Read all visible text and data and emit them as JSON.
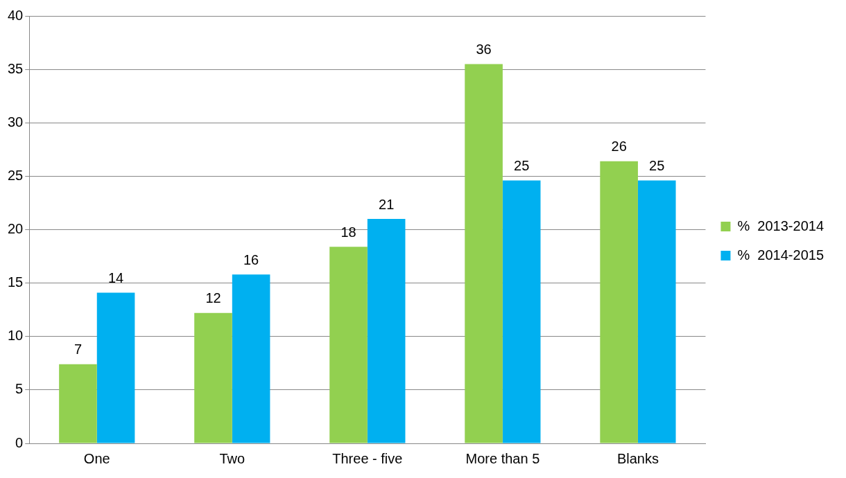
{
  "chart_data": {
    "type": "bar",
    "categories": [
      "One",
      "Two",
      "Three - five",
      "More than 5",
      "Blanks"
    ],
    "series": [
      {
        "name": "%  2013-2014",
        "color": "#92d050",
        "values": [
          7.4,
          12.2,
          18.4,
          35.5,
          26.4
        ],
        "value_labels": [
          "7",
          "12",
          "18",
          "36",
          "26"
        ]
      },
      {
        "name": "%  2014-2015",
        "color": "#00b0f0",
        "values": [
          14.1,
          15.8,
          21.0,
          24.6,
          24.6
        ],
        "value_labels": [
          "14",
          "16",
          "21",
          "25",
          "25"
        ]
      }
    ],
    "ylim": [
      0,
      40
    ],
    "yticks": [
      0,
      5,
      10,
      15,
      20,
      25,
      30,
      35,
      40
    ],
    "grid": "y",
    "legend": "right"
  }
}
